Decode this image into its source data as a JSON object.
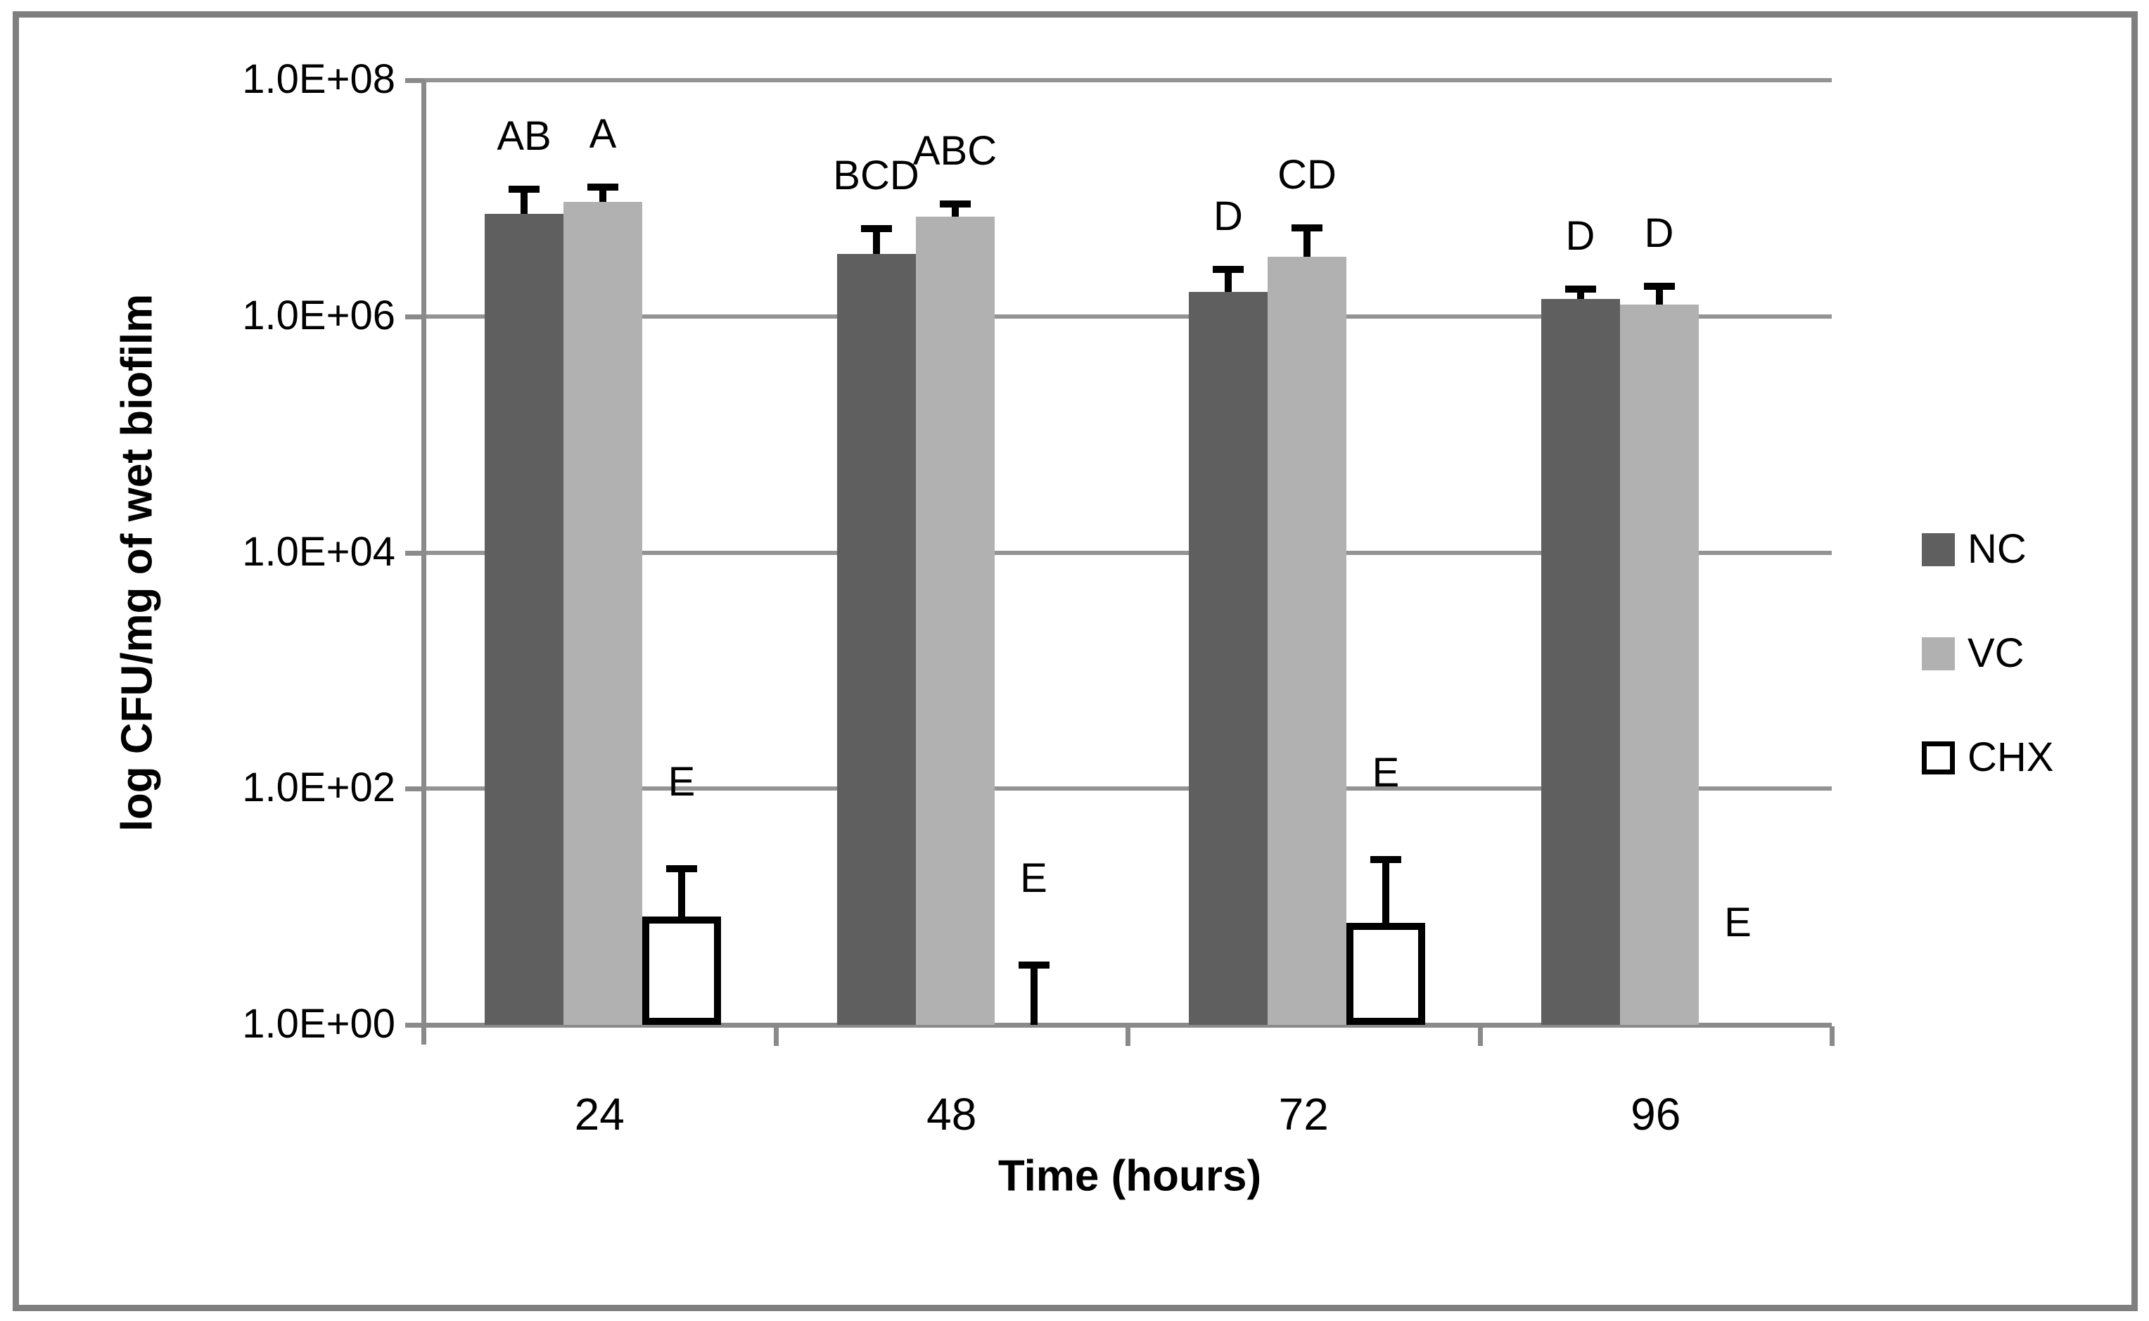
{
  "figure": {
    "background": "#ffffff",
    "border_color": "#7f7f7f",
    "gridline_color": "#939393",
    "axis_color": "#8a8a8a",
    "text_color": "#000000"
  },
  "y_axis": {
    "title": "log CFU/mg of wet biofilm",
    "ticks": [
      {
        "label": "1.0E+08",
        "exp": 8
      },
      {
        "label": "1.0E+06",
        "exp": 6
      },
      {
        "label": "1.0E+04",
        "exp": 4
      },
      {
        "label": "1.0E+02",
        "exp": 2
      },
      {
        "label": "1.0E+00",
        "exp": 0
      }
    ]
  },
  "x_axis": {
    "title": "Time (hours)",
    "categories": [
      "24",
      "48",
      "72",
      "96"
    ]
  },
  "legend": {
    "items": [
      {
        "label": "NC",
        "swatch": "dark-gray-filled"
      },
      {
        "label": "VC",
        "swatch": "light-gray-filled"
      },
      {
        "label": "CHX",
        "swatch": "white-black-outline"
      }
    ]
  },
  "chart_data": {
    "type": "bar",
    "log_scale": true,
    "ylim": [
      1,
      100000000.0
    ],
    "grid": "major-horizontal-every-2-decades",
    "legend_position": "right",
    "title": "",
    "xlabel": "Time (hours)",
    "ylabel": "log CFU/mg of wet biofilm",
    "categories": [
      24,
      48,
      72,
      96
    ],
    "series": [
      {
        "name": "NC",
        "color": "#5f5f5f",
        "outline": null,
        "values": [
          7400000.0,
          3400000.0,
          1600000.0,
          1400000.0
        ],
        "err_upper": [
          12000000.0,
          5500000.0,
          2500000.0,
          1700000.0
        ],
        "sig_letters": [
          "AB",
          "BCD",
          "D",
          "D"
        ]
      },
      {
        "name": "VC",
        "color": "#b1b1b1",
        "outline": null,
        "values": [
          9300000.0,
          7000000.0,
          3200000.0,
          1250000.0
        ],
        "err_upper": [
          12500000.0,
          9000000.0,
          5600000.0,
          1800000.0
        ],
        "sig_letters": [
          "A",
          "ABC",
          "CD",
          "D"
        ]
      },
      {
        "name": "CHX",
        "color": "#ffffff",
        "outline": "#000000",
        "values": [
          8.3,
          1,
          7.3,
          1
        ],
        "err_upper": [
          21,
          3.2,
          25,
          null
        ],
        "sig_letters": [
          "E",
          "E",
          "E",
          "E"
        ]
      }
    ]
  }
}
